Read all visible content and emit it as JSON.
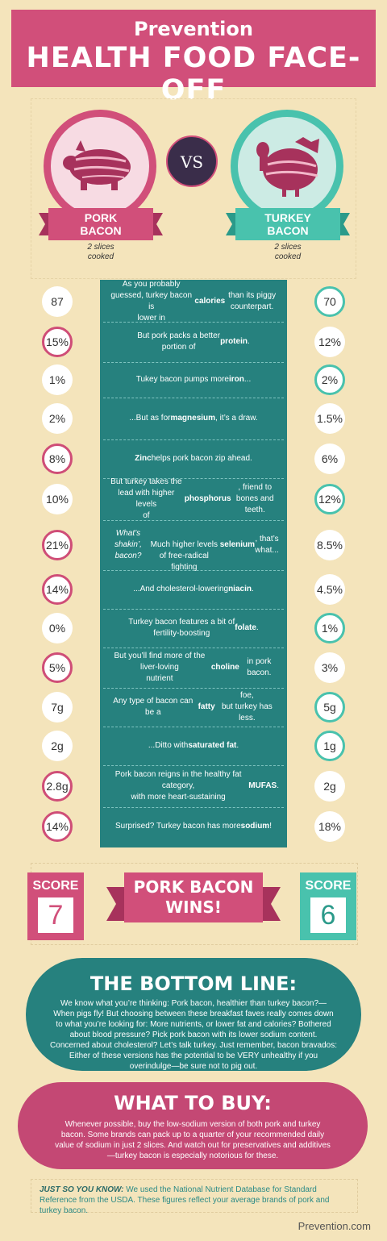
{
  "header": {
    "brand": "Prevention",
    "title": "HEALTH FOOD FACE-OFF"
  },
  "left": {
    "name_line1": "PORK",
    "name_line2": "BACON",
    "sub_line1": "2 slices",
    "sub_line2": "cooked"
  },
  "vs": "VS",
  "right": {
    "name_line1": "TURKEY",
    "name_line2": "BACON",
    "sub_line1": "2 slices",
    "sub_line2": "cooked"
  },
  "rows": [
    {
      "left": "87",
      "right": "70",
      "winner": "right",
      "html": "As you probably guessed, turkey bacon is<br>lower in <b>calories</b> than its piggy counterpart."
    },
    {
      "left": "15%",
      "right": "12%",
      "winner": "left",
      "html": "But pork packs a better<br>portion of <b>protein</b>."
    },
    {
      "left": "1%",
      "right": "2%",
      "winner": "right",
      "html": "Tukey bacon pumps more <b>iron</b>..."
    },
    {
      "left": "2%",
      "right": "1.5%",
      "winner": "none",
      "html": "...But as for <b>magnesium</b>, it’s a draw."
    },
    {
      "left": "8%",
      "right": "6%",
      "winner": "left",
      "html": "<b>Zinc</b> helps pork bacon zip ahead."
    },
    {
      "left": "10%",
      "right": "12%",
      "winner": "right",
      "html": "But turkey takes the lead with higher levels<br>of <b>phosphorus</b>, friend to bones and teeth."
    },
    {
      "left": "21%",
      "right": "8.5%",
      "winner": "left",
      "html": "<i>What’s shakin’, bacon?</i><br><br>Much higher levels of free-radical fighting<br><b>selenium</b>, that’s what..."
    },
    {
      "left": "14%",
      "right": "4.5%",
      "winner": "left",
      "html": "...And cholesterol-lowering <b>niacin</b>."
    },
    {
      "left": "0%",
      "right": "1%",
      "winner": "right",
      "html": "Turkey bacon features a bit of<br>fertility-boosting <b>folate</b>."
    },
    {
      "left": "5%",
      "right": "3%",
      "winner": "left",
      "html": "But you’ll find more of the liver-loving<br>nutrient <b>choline</b> in pork bacon."
    },
    {
      "left": "7g",
      "right": "5g",
      "winner": "right",
      "html": "Any type of bacon can be a <b>fatty</b> foe,<br>but turkey has less."
    },
    {
      "left": "2g",
      "right": "1g",
      "winner": "right",
      "html": "...Ditto with <b>saturated fat</b>."
    },
    {
      "left": "2.8g",
      "right": "2g",
      "winner": "left",
      "html": "Pork bacon reigns in the healthy fat category,<br>with more heart-sustaining <b>MUFAS</b>."
    },
    {
      "left": "14%",
      "right": "18%",
      "winner": "left",
      "html": "Surprised? Turkey bacon has more <b>sodium</b>!"
    }
  ],
  "score": {
    "left_label": "SCORE",
    "left_value": "7",
    "right_label": "SCORE",
    "right_value": "6",
    "result_line1": "PORK BACON",
    "result_line2": "WINS!"
  },
  "bottom_line": {
    "title": "THE BOTTOM LINE:",
    "text": "We know what you’re thinking: Pork bacon, healthier than turkey bacon?—When pigs fly! But choosing between these breakfast faves really comes down to what you’re looking for: More nutrients, or lower fat and calories? Bothered about blood pressure? Pick pork bacon with its lower sodium content. Concerned about cholesterol? Let’s talk turkey. Just remember, bacon bravados: Either of these versions has the potential to be VERY unhealthy if you overindulge—be sure not to pig out."
  },
  "what_to_buy": {
    "title": "WHAT TO BUY:",
    "text": "Whenever possible, buy the low-sodium version of both pork and turkey bacon. Some brands can pack up to a quarter of your recommended daily value of sodium in just 2 slices. And watch out for preservatives and additives—turkey bacon is especially notorious for these."
  },
  "note": {
    "label": "JUST SO YOU KNOW:",
    "text": "We used the National Nutrient Database for Standard Reference from the USDA. These figures reflect your average brands of pork and turkey bacon."
  },
  "footer": "Prevention.com",
  "colors": {
    "pink": "#d14f7a",
    "teal": "#26817e",
    "mint": "#49c2ad",
    "cream": "#f4e4bb"
  }
}
